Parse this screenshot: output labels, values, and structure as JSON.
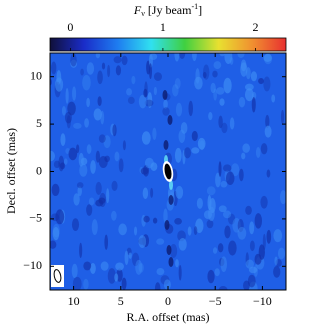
{
  "chart_data": {
    "type": "image",
    "colorbar_label": {
      "main": "F",
      "sub": "ν",
      "unit": "[Jy beam",
      "sup": "-1",
      "end": "]"
    },
    "clim": [
      -0.22,
      2.33
    ],
    "cticks": [
      0,
      1,
      2
    ],
    "colormap": [
      "#10103a",
      "#1a2cc8",
      "#1e7cf0",
      "#30e0f0",
      "#40d040",
      "#e8e030",
      "#f09030",
      "#e83030"
    ],
    "background_color": "#1f5fe6",
    "xlabel": "R.A. offset (mas)",
    "ylabel": "Decl. offset (mas)",
    "xlim": [
      12.5,
      -12.5
    ],
    "ylim": [
      -12.5,
      12.5
    ],
    "xticks": [
      10,
      5,
      0,
      {
        "value": -5,
        "label": "−5"
      },
      {
        "value": -10,
        "label": "−10"
      }
    ],
    "yticks": [
      {
        "value": -10,
        "label": "−10"
      },
      {
        "value": -5,
        "label": "−5"
      },
      0,
      5,
      10
    ],
    "peak": {
      "x": 0,
      "y": 0
    }
  }
}
